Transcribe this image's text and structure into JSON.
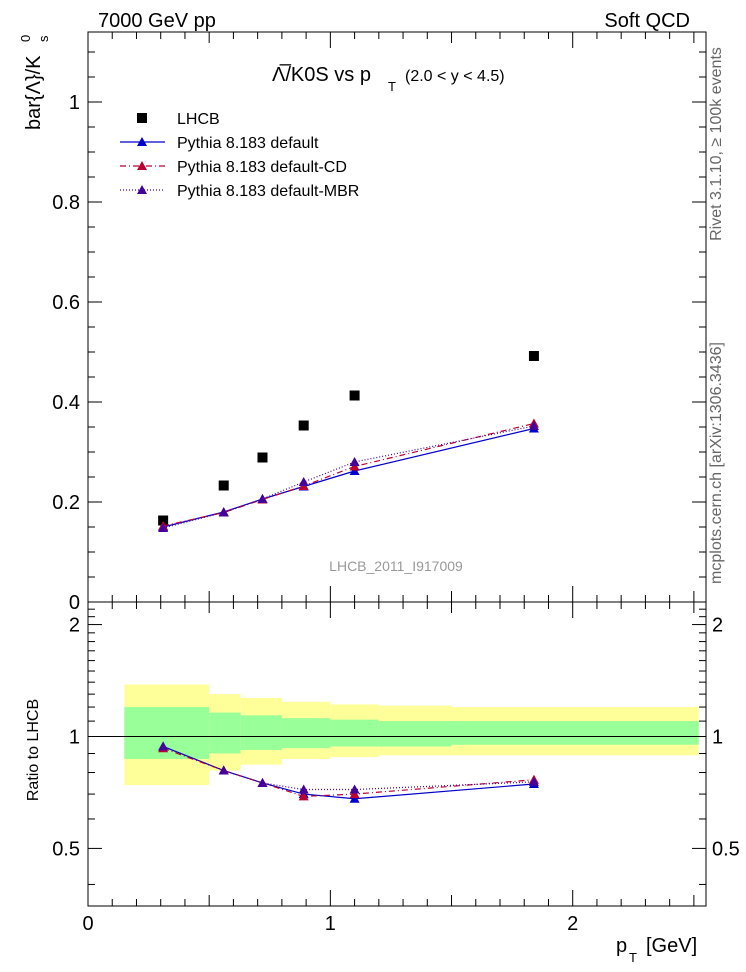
{
  "header": {
    "energy_label": "7000 GeV pp",
    "process_label": "Soft QCD"
  },
  "side_labels": {
    "rivet": "Rivet 3.1.10, ≥ 100k events",
    "mcplots": "mcplots.cern.ch [arXiv:1306.3436]"
  },
  "chart_data": [
    {
      "type": "scatter",
      "title_main": "Λ̅/K0S vs p",
      "title_sub": "T",
      "title_range": "(2.0 < y < 4.5)",
      "ylabel": "bar{Λ}/K",
      "ylabel_sup": "0",
      "ylabel_sub": "s",
      "watermark": "LHCB_2011_I917009",
      "xlim": [
        0,
        2.55
      ],
      "ylim": [
        0,
        1.14
      ],
      "y_ticks": [
        0,
        0.2,
        0.4,
        0.6,
        0.8,
        1
      ],
      "y_tick_labels": [
        "0",
        "0.2",
        "0.4",
        "0.6",
        "0.8",
        "1"
      ],
      "legend_position": "top-left",
      "x": [
        0.31,
        0.56,
        0.72,
        0.89,
        1.1,
        1.84
      ],
      "series": [
        {
          "name": "LHCB",
          "color": "#000000",
          "marker": "square",
          "values": [
            0.163,
            0.233,
            0.289,
            0.353,
            0.413,
            0.492
          ]
        },
        {
          "name": "Pythia 8.183 default",
          "color": "#0000cc",
          "marker": "triangle",
          "line": "solid",
          "values": [
            0.15,
            0.18,
            0.206,
            0.231,
            0.262,
            0.347
          ]
        },
        {
          "name": "Pythia 8.183 default-CD",
          "color": "#bb0033",
          "marker": "triangle",
          "line": "dashdot",
          "values": [
            0.152,
            0.179,
            0.205,
            0.232,
            0.271,
            0.357
          ]
        },
        {
          "name": "Pythia 8.183 default-MBR",
          "color": "#440099",
          "marker": "triangle",
          "line": "dotted",
          "values": [
            0.148,
            0.179,
            0.206,
            0.24,
            0.28,
            0.352
          ]
        }
      ]
    },
    {
      "type": "line",
      "ylabel": "Ratio to LHCB",
      "xlabel": "p",
      "xlabel_sub": "T",
      "xlabel_unit": "[GeV]",
      "xlim": [
        0,
        2.55
      ],
      "ylim": [
        0.35,
        2.3
      ],
      "x_ticks": [
        0,
        1,
        2
      ],
      "x_tick_labels": [
        "0",
        "1",
        "2"
      ],
      "y_ticks": [
        0.5,
        1,
        2
      ],
      "y_tick_labels": [
        "0.5",
        "1",
        "2"
      ],
      "bands": {
        "edges": [
          0.15,
          0.5,
          0.63,
          0.8,
          1.0,
          1.2,
          1.5,
          2.52
        ],
        "yellow_low": [
          0.74,
          0.81,
          0.84,
          0.87,
          0.88,
          0.89,
          0.89
        ],
        "yellow_high": [
          1.38,
          1.3,
          1.27,
          1.24,
          1.22,
          1.21,
          1.2
        ],
        "green_low": [
          0.87,
          0.9,
          0.92,
          0.93,
          0.94,
          0.94,
          0.95
        ],
        "green_high": [
          1.2,
          1.16,
          1.14,
          1.12,
          1.11,
          1.1,
          1.1
        ],
        "yellow_color": "#ffff99",
        "green_color": "#99ff99"
      },
      "x": [
        0.31,
        0.56,
        0.72,
        0.89,
        1.1,
        1.84
      ],
      "series": [
        {
          "name": "Pythia 8.183 default",
          "color": "#0000cc",
          "values": [
            0.94,
            0.81,
            0.75,
            0.7,
            0.68,
            0.745
          ]
        },
        {
          "name": "Pythia 8.183 default-CD",
          "color": "#bb0033",
          "values": [
            0.93,
            0.81,
            0.75,
            0.69,
            0.7,
            0.765
          ]
        },
        {
          "name": "Pythia 8.183 default-MBR",
          "color": "#440099",
          "values": [
            0.94,
            0.81,
            0.75,
            0.72,
            0.72,
            0.755
          ]
        }
      ]
    }
  ]
}
